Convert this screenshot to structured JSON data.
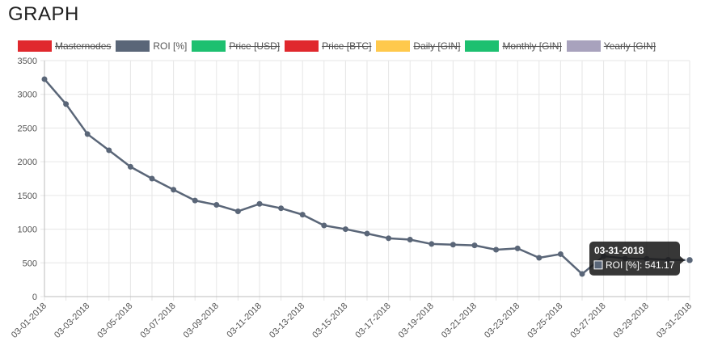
{
  "page": {
    "title": "GRAPH"
  },
  "legend": [
    {
      "label": "Masternodes",
      "color": "#e0282d",
      "hidden": true
    },
    {
      "label": "ROI [%]",
      "color": "#5a6678",
      "hidden": false
    },
    {
      "label": "Price [USD]",
      "color": "#1dc070",
      "hidden": true
    },
    {
      "label": "Price [BTC]",
      "color": "#e0282d",
      "hidden": true
    },
    {
      "label": "Daily [GIN]",
      "color": "#ffc94c",
      "hidden": true
    },
    {
      "label": "Monthly [GIN]",
      "color": "#1dc070",
      "hidden": true
    },
    {
      "label": "Yearly [GIN]",
      "color": "#a8a2bd",
      "hidden": true
    }
  ],
  "chart_data": {
    "type": "line",
    "title": "GRAPH",
    "xlabel": "",
    "ylabel": "",
    "ylim": [
      0,
      3500
    ],
    "yticks": [
      0,
      500,
      1000,
      1500,
      2000,
      2500,
      3000,
      3500
    ],
    "x": [
      "03-01-2018",
      "03-02-2018",
      "03-03-2018",
      "03-04-2018",
      "03-05-2018",
      "03-06-2018",
      "03-07-2018",
      "03-08-2018",
      "03-09-2018",
      "03-10-2018",
      "03-11-2018",
      "03-12-2018",
      "03-13-2018",
      "03-14-2018",
      "03-15-2018",
      "03-16-2018",
      "03-17-2018",
      "03-18-2018",
      "03-19-2018",
      "03-20-2018",
      "03-21-2018",
      "03-22-2018",
      "03-23-2018",
      "03-24-2018",
      "03-25-2018",
      "03-26-2018",
      "03-27-2018",
      "03-28-2018",
      "03-29-2018",
      "03-30-2018",
      "03-31-2018"
    ],
    "xtick_labels": [
      "03-01-2018",
      "03-03-2018",
      "03-05-2018",
      "03-07-2018",
      "03-09-2018",
      "03-11-2018",
      "03-13-2018",
      "03-15-2018",
      "03-17-2018",
      "03-19-2018",
      "03-21-2018",
      "03-23-2018",
      "03-25-2018",
      "03-27-2018",
      "03-29-2018",
      "03-31-2018"
    ],
    "series": [
      {
        "name": "ROI [%]",
        "color": "#5a6678",
        "values": [
          3225,
          2855,
          2410,
          2170,
          1925,
          1750,
          1585,
          1425,
          1360,
          1265,
          1375,
          1310,
          1215,
          1055,
          1000,
          935,
          865,
          845,
          780,
          770,
          760,
          695,
          715,
          575,
          630,
          335,
          600,
          565,
          560,
          545,
          541.17
        ]
      }
    ],
    "tooltip": {
      "date": "03-31-2018",
      "series": "ROI [%]",
      "value_text": "541.17"
    },
    "grid": true,
    "legend_position": "top"
  }
}
